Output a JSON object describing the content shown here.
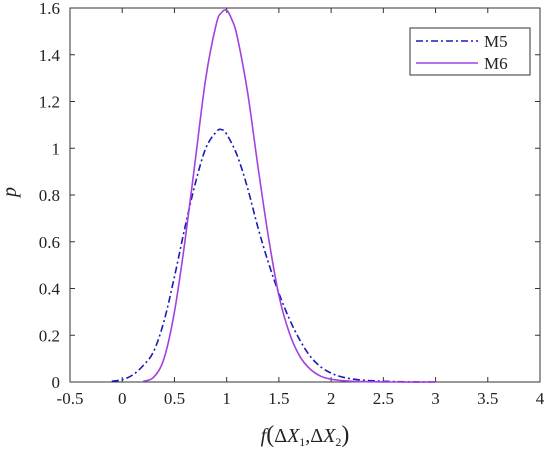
{
  "chart_data": {
    "type": "line",
    "title": "",
    "xlabel": "f(ΔX1,ΔX2)",
    "ylabel": "p",
    "xlim": [
      -0.5,
      4
    ],
    "ylim": [
      0,
      1.6
    ],
    "x_ticks": [
      "-0.5",
      "0",
      "0.5",
      "1",
      "1.5",
      "2",
      "2.5",
      "3",
      "3.5",
      "4"
    ],
    "y_ticks": [
      "0",
      "0.2",
      "0.4",
      "0.6",
      "0.8",
      "1",
      "1.2",
      "1.4",
      "1.6"
    ],
    "grid": false,
    "legend_position": "top-right",
    "series": [
      {
        "name": "M5",
        "color": "#1a1ab8",
        "line_style": "dash-dot",
        "x": [
          -0.1,
          0.0,
          0.1,
          0.2,
          0.3,
          0.4,
          0.5,
          0.6,
          0.7,
          0.8,
          0.9,
          0.95,
          1.0,
          1.1,
          1.2,
          1.3,
          1.4,
          1.5,
          1.6,
          1.7,
          1.8,
          1.9,
          2.0,
          2.1,
          2.2,
          2.3,
          2.4,
          2.5,
          2.7,
          3.0
        ],
        "y": [
          0.003,
          0.01,
          0.03,
          0.07,
          0.13,
          0.26,
          0.45,
          0.66,
          0.85,
          1.0,
          1.07,
          1.08,
          1.06,
          0.97,
          0.83,
          0.66,
          0.51,
          0.38,
          0.27,
          0.18,
          0.11,
          0.065,
          0.038,
          0.022,
          0.013,
          0.008,
          0.005,
          0.003,
          0.001,
          0.0
        ]
      },
      {
        "name": "M6",
        "color": "#a340e0",
        "line_style": "solid",
        "x": [
          0.2,
          0.3,
          0.4,
          0.5,
          0.6,
          0.7,
          0.8,
          0.9,
          0.95,
          1.0,
          1.05,
          1.1,
          1.2,
          1.3,
          1.4,
          1.5,
          1.6,
          1.7,
          1.8,
          1.9,
          2.0,
          2.1,
          2.2,
          2.4,
          2.6,
          3.0
        ],
        "y": [
          0.003,
          0.02,
          0.1,
          0.3,
          0.6,
          0.95,
          1.3,
          1.53,
          1.58,
          1.59,
          1.55,
          1.48,
          1.24,
          0.92,
          0.62,
          0.37,
          0.21,
          0.11,
          0.055,
          0.025,
          0.012,
          0.006,
          0.003,
          0.001,
          0.0,
          0.0
        ]
      }
    ]
  }
}
